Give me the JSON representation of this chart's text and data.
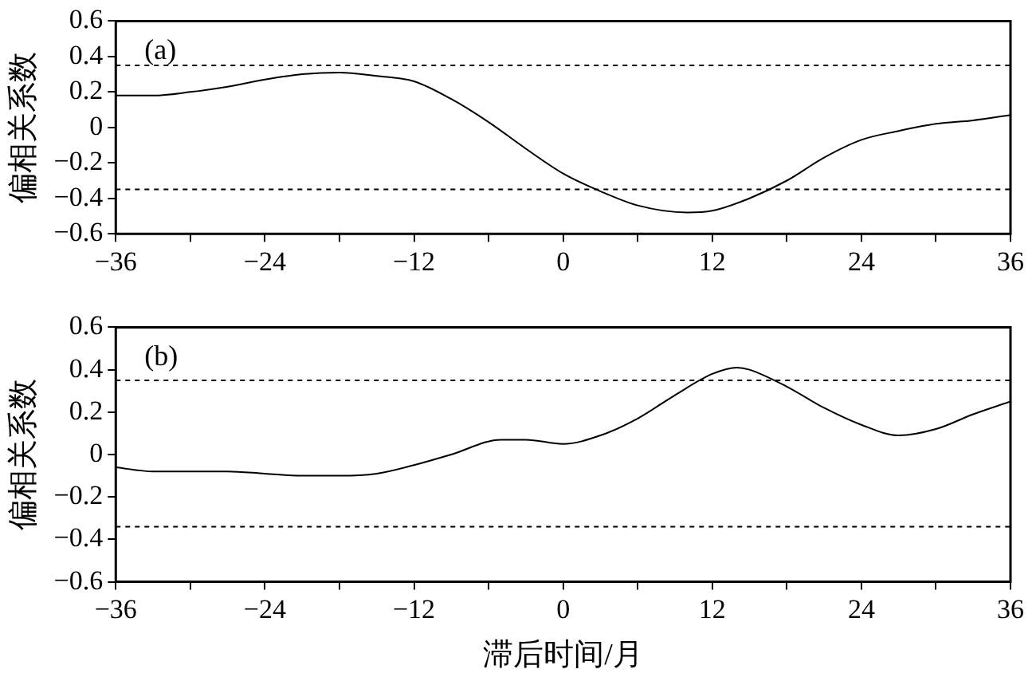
{
  "chart_data": [
    {
      "type": "line",
      "ylabel": "偏相关系数",
      "annotations": [
        "(a)"
      ],
      "grid": false,
      "legend": false,
      "marker": "none",
      "line_style": "solid",
      "xlim": [
        -36,
        36
      ],
      "xticks": [
        {
          "value": -36,
          "label": "−36"
        },
        {
          "value": -30,
          "label": null
        },
        {
          "value": -24,
          "label": "−24"
        },
        {
          "value": -18,
          "label": null
        },
        {
          "value": -12,
          "label": "−12"
        },
        {
          "value": -6,
          "label": null
        },
        0,
        {
          "value": 6,
          "label": null
        },
        12,
        {
          "value": 18,
          "label": null
        },
        24,
        {
          "value": 30,
          "label": null
        },
        36
      ],
      "ylim": [
        -0.6,
        0.6
      ],
      "yticks": [
        {
          "value": -0.6,
          "label": "−0.6"
        },
        {
          "value": -0.4,
          "label": "−0.4"
        },
        {
          "value": -0.2,
          "label": "−0.2"
        },
        0,
        0.2,
        0.4,
        0.6
      ],
      "ref_lines": [
        {
          "axis": "y",
          "value": 0.35,
          "color": "#000000",
          "line_style": "dashed"
        },
        {
          "axis": "y",
          "value": -0.35,
          "color": "#000000",
          "line_style": "dashed"
        }
      ],
      "series": [
        {
          "color": "#000000",
          "x": [
            -36,
            -33,
            -30,
            -27,
            -24,
            -21,
            -18,
            -15,
            -12,
            -9,
            -6,
            -3,
            0,
            3,
            6,
            10,
            12,
            15,
            18,
            21,
            24,
            27,
            30,
            33,
            36
          ],
          "values": [
            0.18,
            0.18,
            0.2,
            0.23,
            0.27,
            0.3,
            0.31,
            0.29,
            0.26,
            0.16,
            0.03,
            -0.12,
            -0.26,
            -0.36,
            -0.44,
            -0.48,
            -0.47,
            -0.4,
            -0.3,
            -0.17,
            -0.07,
            -0.02,
            0.02,
            0.04,
            0.07
          ]
        }
      ]
    },
    {
      "type": "line",
      "ylabel": "偏相关系数",
      "xlabel": "滞后时间/月",
      "annotations": [
        "(b)"
      ],
      "grid": false,
      "legend": false,
      "marker": "none",
      "line_style": "solid",
      "xlim": [
        -36,
        36
      ],
      "xticks": [
        {
          "value": -36,
          "label": "−36"
        },
        {
          "value": -30,
          "label": null
        },
        {
          "value": -24,
          "label": "−24"
        },
        {
          "value": -18,
          "label": null
        },
        {
          "value": -12,
          "label": "−12"
        },
        {
          "value": -6,
          "label": null
        },
        0,
        {
          "value": 6,
          "label": null
        },
        12,
        {
          "value": 18,
          "label": null
        },
        24,
        {
          "value": 30,
          "label": null
        },
        36
      ],
      "ylim": [
        -0.6,
        0.6
      ],
      "yticks": [
        {
          "value": -0.6,
          "label": "−0.6"
        },
        {
          "value": -0.4,
          "label": "−0.4"
        },
        {
          "value": -0.2,
          "label": "−0.2"
        },
        0,
        0.2,
        0.4,
        0.6
      ],
      "ref_lines": [
        {
          "axis": "y",
          "value": 0.35,
          "color": "#000000",
          "line_style": "dashed"
        },
        {
          "axis": "y",
          "value": -0.34,
          "color": "#000000",
          "line_style": "dashed"
        }
      ],
      "series": [
        {
          "color": "#000000",
          "x": [
            -36,
            -33,
            -30,
            -27,
            -24,
            -21,
            -18,
            -15,
            -12,
            -9,
            -5,
            -3,
            0,
            3,
            6,
            9,
            12,
            14,
            15,
            18,
            21,
            24,
            27,
            30,
            33,
            36
          ],
          "values": [
            -0.06,
            -0.08,
            -0.08,
            -0.08,
            -0.09,
            -0.1,
            -0.1,
            -0.09,
            -0.05,
            0.0,
            0.07,
            0.07,
            0.05,
            0.09,
            0.17,
            0.28,
            0.38,
            0.41,
            0.4,
            0.32,
            0.22,
            0.14,
            0.09,
            0.12,
            0.19,
            0.25
          ]
        }
      ]
    }
  ]
}
